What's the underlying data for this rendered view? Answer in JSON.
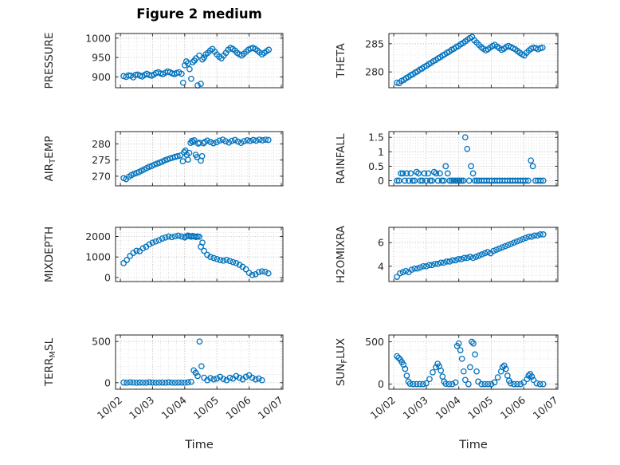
{
  "title": "Figure 2 medium",
  "accent_color": "#0072BD",
  "frame_color": "#262626",
  "x_axis": {
    "label": "Time",
    "lim": [
      1.85,
      7.05
    ],
    "ticks": [
      2,
      3,
      4,
      5,
      6,
      7
    ],
    "tick_labels": [
      "10/02",
      "10/03",
      "10/04",
      "10/05",
      "10/06",
      "10/07"
    ]
  },
  "chart_data": [
    {
      "type": "scatter",
      "name": "PRESSURE",
      "ylabel": "PRESSURE",
      "ylabel_parts": [
        {
          "t": "PRESSURE"
        }
      ],
      "yticks": [
        900,
        950,
        1000
      ],
      "ylim": [
        872,
        1012
      ],
      "x": [
        2.1,
        2.18,
        2.25,
        2.32,
        2.4,
        2.47,
        2.54,
        2.61,
        2.68,
        2.75,
        2.82,
        2.9,
        2.97,
        3.04,
        3.11,
        3.18,
        3.25,
        3.32,
        3.4,
        3.47,
        3.54,
        3.61,
        3.68,
        3.75,
        3.82,
        3.9,
        3.95,
        4.0,
        4.05,
        4.1,
        4.15,
        4.2,
        4.25,
        4.3,
        4.35,
        4.4,
        4.45,
        4.5,
        4.55,
        4.6,
        4.65,
        4.72,
        4.79,
        4.86,
        4.93,
        5.0,
        5.07,
        5.14,
        5.21,
        5.28,
        5.35,
        5.42,
        5.49,
        5.56,
        5.63,
        5.7,
        5.77,
        5.84,
        5.91,
        5.98,
        6.05,
        6.12,
        6.19,
        6.26,
        6.33,
        6.4,
        6.47,
        6.54,
        6.61
      ],
      "y": [
        902,
        900,
        904,
        903,
        899,
        905,
        906,
        903,
        901,
        905,
        908,
        905,
        903,
        906,
        910,
        912,
        909,
        907,
        911,
        914,
        912,
        909,
        907,
        910,
        912,
        908,
        885,
        930,
        940,
        935,
        920,
        895,
        938,
        942,
        948,
        878,
        955,
        882,
        945,
        950,
        958,
        962,
        968,
        972,
        965,
        958,
        952,
        948,
        955,
        962,
        970,
        975,
        972,
        968,
        962,
        958,
        955,
        960,
        965,
        970,
        973,
        975,
        972,
        968,
        963,
        958,
        962,
        966,
        970
      ]
    },
    {
      "type": "scatter",
      "name": "THETA",
      "ylabel": "THETA",
      "ylabel_parts": [
        {
          "t": "THETA"
        }
      ],
      "yticks": [
        280,
        285
      ],
      "ylim": [
        277.2,
        286.8
      ],
      "x": [
        2.1,
        2.17,
        2.24,
        2.31,
        2.38,
        2.45,
        2.52,
        2.59,
        2.66,
        2.73,
        2.8,
        2.87,
        2.94,
        3.01,
        3.08,
        3.15,
        3.22,
        3.29,
        3.36,
        3.43,
        3.5,
        3.57,
        3.64,
        3.71,
        3.78,
        3.85,
        3.92,
        3.99,
        4.06,
        4.13,
        4.2,
        4.27,
        4.34,
        4.41,
        4.48,
        4.55,
        4.62,
        4.69,
        4.76,
        4.83,
        4.9,
        4.97,
        5.04,
        5.11,
        5.18,
        5.25,
        5.32,
        5.39,
        5.46,
        5.53,
        5.6,
        5.67,
        5.74,
        5.81,
        5.88,
        5.95,
        6.02,
        6.09,
        6.16,
        6.23,
        6.3,
        6.37,
        6.44,
        6.51,
        6.58
      ],
      "y": [
        278.1,
        278.0,
        278.4,
        278.6,
        278.9,
        279.1,
        279.4,
        279.6,
        279.9,
        280.1,
        280.4,
        280.6,
        280.9,
        281.1,
        281.4,
        281.6,
        281.9,
        282.1,
        282.4,
        282.6,
        282.9,
        283.1,
        283.4,
        283.6,
        283.9,
        284.1,
        284.4,
        284.6,
        284.9,
        285.1,
        285.4,
        285.7,
        286.0,
        286.2,
        285.6,
        285.2,
        284.8,
        284.4,
        284.1,
        283.8,
        284.0,
        284.3,
        284.6,
        284.8,
        284.5,
        284.2,
        283.9,
        284.1,
        284.4,
        284.6,
        284.4,
        284.2,
        284.0,
        283.7,
        283.4,
        283.1,
        282.9,
        283.4,
        283.8,
        284.1,
        284.3,
        284.2,
        284.0,
        284.2,
        284.3
      ]
    },
    {
      "type": "scatter",
      "name": "AIRTEMP",
      "ylabel": "AIR_TEMP",
      "ylabel_parts": [
        {
          "t": "AIR"
        },
        {
          "t": "T",
          "sub": true
        },
        {
          "t": "EMP"
        }
      ],
      "yticks": [
        270,
        275,
        280
      ],
      "ylim": [
        267,
        283.8
      ],
      "x": [
        2.1,
        2.18,
        2.26,
        2.34,
        2.42,
        2.5,
        2.58,
        2.66,
        2.74,
        2.82,
        2.9,
        2.98,
        3.06,
        3.14,
        3.22,
        3.3,
        3.38,
        3.46,
        3.54,
        3.62,
        3.7,
        3.78,
        3.86,
        3.94,
        3.98,
        4.02,
        4.06,
        4.1,
        4.14,
        4.18,
        4.22,
        4.26,
        4.3,
        4.34,
        4.38,
        4.42,
        4.46,
        4.5,
        4.54,
        4.58,
        4.62,
        4.7,
        4.8,
        4.89,
        4.99,
        5.08,
        5.18,
        5.27,
        5.37,
        5.46,
        5.56,
        5.65,
        5.75,
        5.84,
        5.94,
        6.03,
        6.13,
        6.22,
        6.32,
        6.41,
        6.51,
        6.6
      ],
      "y": [
        269.4,
        269.1,
        269.8,
        270.3,
        270.7,
        271.0,
        271.3,
        271.7,
        272.1,
        272.5,
        272.9,
        273.2,
        273.6,
        273.9,
        274.2,
        274.5,
        274.9,
        275.2,
        275.5,
        275.7,
        276.0,
        276.2,
        276.4,
        274.6,
        277.4,
        277.9,
        276.6,
        275.1,
        277.2,
        280.3,
        280.9,
        280.6,
        281.1,
        276.6,
        275.9,
        280.1,
        280.4,
        274.8,
        276.2,
        280.2,
        280.6,
        281.0,
        280.6,
        280.2,
        280.5,
        281.0,
        281.3,
        280.8,
        280.4,
        280.9,
        281.2,
        280.7,
        280.3,
        280.8,
        281.1,
        280.9,
        281.2,
        281.0,
        281.3,
        281.1,
        281.3,
        281.2
      ]
    },
    {
      "type": "scatter",
      "name": "RAINFALL",
      "ylabel": "RAINFALL",
      "ylabel_parts": [
        {
          "t": "RAINFALL"
        }
      ],
      "yticks": [
        0,
        0.5,
        1,
        1.5
      ],
      "ylim": [
        -0.18,
        1.7
      ],
      "x": [
        2.1,
        2.16,
        2.22,
        2.28,
        2.34,
        2.4,
        2.46,
        2.52,
        2.58,
        2.64,
        2.7,
        2.76,
        2.82,
        2.88,
        2.94,
        3.0,
        3.06,
        3.12,
        3.18,
        3.24,
        3.3,
        3.36,
        3.42,
        3.48,
        3.54,
        3.6,
        3.66,
        3.72,
        3.78,
        3.84,
        3.9,
        3.96,
        4.02,
        4.08,
        4.14,
        4.2,
        4.26,
        4.32,
        4.38,
        4.44,
        4.5,
        4.56,
        4.62,
        4.7,
        4.78,
        4.86,
        4.94,
        5.02,
        5.1,
        5.18,
        5.26,
        5.34,
        5.42,
        5.5,
        5.58,
        5.66,
        5.74,
        5.82,
        5.9,
        5.98,
        6.06,
        6.14,
        6.22,
        6.28,
        6.36,
        6.44,
        6.52,
        6.6
      ],
      "y": [
        0,
        0,
        0.25,
        0.25,
        0,
        0.25,
        0,
        0.25,
        0,
        0,
        0.3,
        0.25,
        0,
        0,
        0.25,
        0,
        0.25,
        0,
        0,
        0.3,
        0.25,
        0,
        0.25,
        0,
        0,
        0.5,
        0.25,
        0,
        0,
        0,
        0,
        0,
        0,
        0,
        0,
        1.5,
        1.1,
        0,
        0.5,
        0.25,
        0,
        0,
        0,
        0,
        0,
        0,
        0,
        0,
        0,
        0,
        0,
        0,
        0,
        0,
        0,
        0,
        0,
        0,
        0,
        0,
        0,
        0,
        0.7,
        0.5,
        0,
        0,
        0,
        0
      ]
    },
    {
      "type": "scatter",
      "name": "MIXDEPTH",
      "ylabel": "MIXDEPTH",
      "ylabel_parts": [
        {
          "t": "MIXDEPTH"
        }
      ],
      "yticks": [
        0,
        1000,
        2000
      ],
      "ylim": [
        -200,
        2450
      ],
      "x": [
        2.1,
        2.2,
        2.3,
        2.4,
        2.5,
        2.6,
        2.7,
        2.8,
        2.9,
        3.0,
        3.1,
        3.2,
        3.3,
        3.4,
        3.5,
        3.6,
        3.7,
        3.8,
        3.9,
        4.0,
        4.05,
        4.1,
        4.15,
        4.2,
        4.25,
        4.3,
        4.35,
        4.4,
        4.45,
        4.5,
        4.55,
        4.6,
        4.7,
        4.8,
        4.9,
        5.0,
        5.1,
        5.2,
        5.3,
        5.4,
        5.5,
        5.6,
        5.7,
        5.8,
        5.9,
        6.0,
        6.1,
        6.2,
        6.3,
        6.4,
        6.5,
        6.6
      ],
      "y": [
        700,
        850,
        1050,
        1200,
        1300,
        1280,
        1420,
        1500,
        1620,
        1700,
        1760,
        1820,
        1900,
        1950,
        2000,
        1970,
        2010,
        2040,
        2000,
        1960,
        2010,
        2050,
        2020,
        1990,
        2030,
        2000,
        1980,
        2010,
        1990,
        1500,
        1700,
        1300,
        1100,
        1000,
        950,
        900,
        850,
        820,
        860,
        800,
        750,
        700,
        620,
        520,
        400,
        220,
        120,
        160,
        260,
        300,
        280,
        200
      ]
    },
    {
      "type": "scatter",
      "name": "H2OMIXRA",
      "ylabel": "H2OMIXRA",
      "ylabel_parts": [
        {
          "t": "H2OMIXRA"
        }
      ],
      "yticks": [
        4,
        6
      ],
      "ylim": [
        2.7,
        7.3
      ],
      "x": [
        2.1,
        2.19,
        2.28,
        2.37,
        2.46,
        2.55,
        2.64,
        2.73,
        2.82,
        2.91,
        3.0,
        3.09,
        3.18,
        3.27,
        3.36,
        3.45,
        3.54,
        3.63,
        3.72,
        3.81,
        3.9,
        3.99,
        4.08,
        4.17,
        4.26,
        4.35,
        4.44,
        4.53,
        4.62,
        4.71,
        4.8,
        4.89,
        4.98,
        5.07,
        5.16,
        5.25,
        5.34,
        5.43,
        5.52,
        5.61,
        5.7,
        5.79,
        5.88,
        5.97,
        6.06,
        6.15,
        6.24,
        6.33,
        6.42,
        6.51,
        6.6
      ],
      "y": [
        3.1,
        3.4,
        3.5,
        3.6,
        3.5,
        3.7,
        3.8,
        3.8,
        3.9,
        4.0,
        4.0,
        4.1,
        4.1,
        4.2,
        4.2,
        4.3,
        4.3,
        4.4,
        4.4,
        4.5,
        4.5,
        4.6,
        4.6,
        4.7,
        4.7,
        4.8,
        4.7,
        4.8,
        4.9,
        5.0,
        5.1,
        5.2,
        5.1,
        5.3,
        5.4,
        5.5,
        5.6,
        5.7,
        5.8,
        5.9,
        6.0,
        6.1,
        6.2,
        6.3,
        6.4,
        6.5,
        6.5,
        6.6,
        6.6,
        6.7,
        6.7
      ]
    },
    {
      "type": "scatter",
      "name": "TERR_MSL",
      "ylabel": "TERR_MSL",
      "ylabel_parts": [
        {
          "t": "TERR"
        },
        {
          "t": "M",
          "sub": true
        },
        {
          "t": "SL"
        }
      ],
      "yticks": [
        0,
        500
      ],
      "ylim": [
        -80,
        580
      ],
      "x": [
        2.1,
        2.2,
        2.3,
        2.4,
        2.5,
        2.6,
        2.7,
        2.8,
        2.9,
        3.0,
        3.1,
        3.2,
        3.3,
        3.4,
        3.5,
        3.6,
        3.7,
        3.8,
        3.9,
        4.0,
        4.1,
        4.2,
        4.28,
        4.34,
        4.4,
        4.46,
        4.52,
        4.6,
        4.7,
        4.8,
        4.9,
        5.0,
        5.1,
        5.2,
        5.3,
        5.4,
        5.5,
        5.6,
        5.7,
        5.8,
        5.9,
        6.0,
        6.1,
        6.2,
        6.3,
        6.4
      ],
      "y": [
        2,
        0,
        3,
        1,
        0,
        2,
        1,
        0,
        3,
        2,
        0,
        1,
        2,
        0,
        3,
        1,
        0,
        2,
        1,
        0,
        3,
        10,
        150,
        120,
        80,
        500,
        200,
        60,
        30,
        55,
        40,
        50,
        70,
        45,
        30,
        60,
        50,
        80,
        60,
        40,
        70,
        90,
        60,
        40,
        50,
        30
      ]
    },
    {
      "type": "scatter",
      "name": "SUN_FLUX",
      "ylabel": "SUN_FLUX",
      "ylabel_parts": [
        {
          "t": "SUN"
        },
        {
          "t": "F",
          "sub": true
        },
        {
          "t": "LUX"
        }
      ],
      "yticks": [
        0,
        500
      ],
      "ylim": [
        -60,
        580
      ],
      "x": [
        2.1,
        2.15,
        2.2,
        2.25,
        2.3,
        2.35,
        2.4,
        2.45,
        2.5,
        2.6,
        2.7,
        2.8,
        2.9,
        3.0,
        3.1,
        3.2,
        3.3,
        3.35,
        3.4,
        3.45,
        3.5,
        3.55,
        3.6,
        3.7,
        3.8,
        3.9,
        3.95,
        4.0,
        4.05,
        4.1,
        4.15,
        4.2,
        4.3,
        4.35,
        4.4,
        4.45,
        4.5,
        4.55,
        4.6,
        4.7,
        4.8,
        4.9,
        5.0,
        5.1,
        5.2,
        5.3,
        5.35,
        5.4,
        5.45,
        5.5,
        5.55,
        5.6,
        5.7,
        5.8,
        5.9,
        6.0,
        6.1,
        6.15,
        6.2,
        6.25,
        6.3,
        6.4,
        6.5,
        6.6
      ],
      "y": [
        330,
        310,
        290,
        260,
        230,
        180,
        100,
        30,
        5,
        0,
        0,
        0,
        0,
        10,
        60,
        140,
        200,
        240,
        210,
        160,
        90,
        30,
        5,
        0,
        0,
        20,
        450,
        480,
        400,
        300,
        150,
        50,
        0,
        200,
        500,
        480,
        350,
        150,
        30,
        0,
        0,
        0,
        0,
        20,
        80,
        150,
        200,
        220,
        180,
        100,
        40,
        10,
        0,
        0,
        0,
        20,
        60,
        100,
        120,
        90,
        50,
        10,
        0,
        0
      ]
    }
  ]
}
